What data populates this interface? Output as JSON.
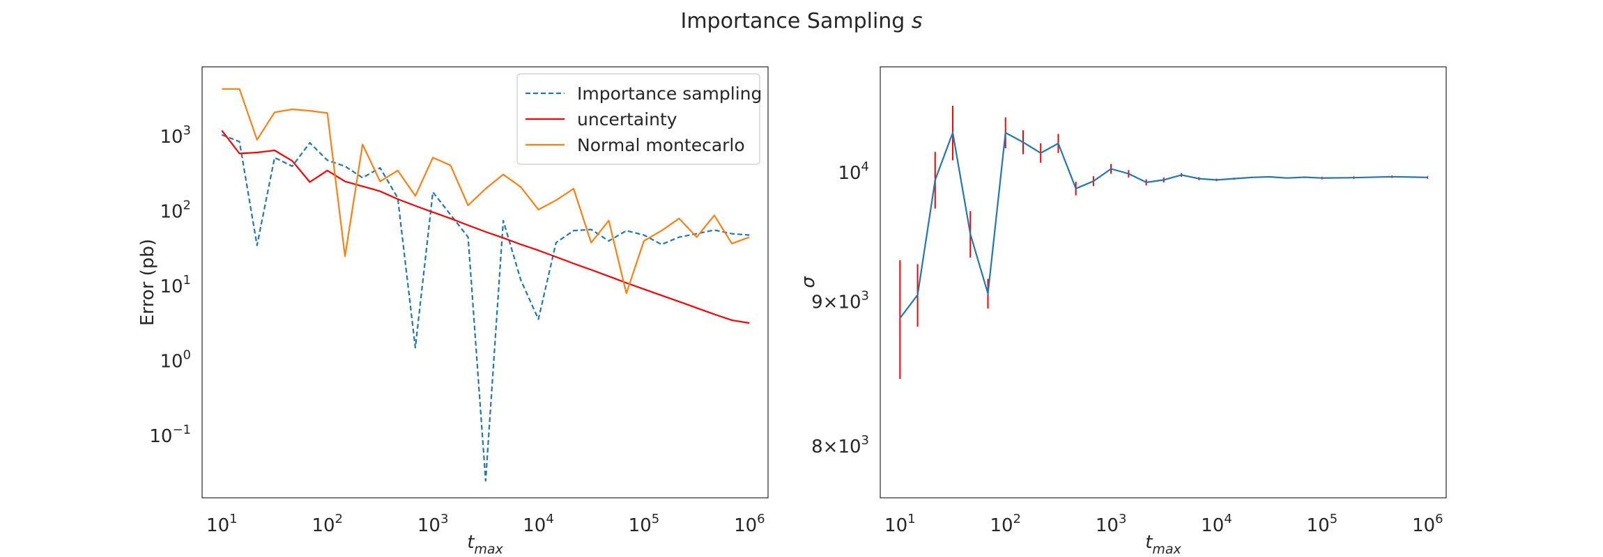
{
  "title": {
    "text": "Importance Sampling ",
    "symbol": "s"
  },
  "chart_data": [
    {
      "type": "line",
      "xscale": "log",
      "yscale": "log",
      "xlim": [
        6.5,
        1500000
      ],
      "ylim": [
        0.0148,
        8500
      ],
      "xlabel": {
        "main": "t",
        "sub": "max"
      },
      "ylabel": "Error (pb)",
      "xticks": [
        {
          "value": 10,
          "base": "10",
          "exp": "1"
        },
        {
          "value": 100,
          "base": "10",
          "exp": "2"
        },
        {
          "value": 1000,
          "base": "10",
          "exp": "3"
        },
        {
          "value": 10000,
          "base": "10",
          "exp": "4"
        },
        {
          "value": 100000,
          "base": "10",
          "exp": "5"
        },
        {
          "value": 1000000,
          "base": "10",
          "exp": "6"
        }
      ],
      "yticks": [
        {
          "value": 0.1,
          "base": "10",
          "exp": "−1"
        },
        {
          "value": 1,
          "base": "10",
          "exp": "0"
        },
        {
          "value": 10,
          "base": "10",
          "exp": "1"
        },
        {
          "value": 100,
          "base": "10",
          "exp": "2"
        },
        {
          "value": 1000,
          "base": "10",
          "exp": "3"
        }
      ],
      "grid": false,
      "legend_position": "top-right",
      "x": [
        10,
        14.68,
        21.54,
        31.62,
        46.42,
        68.13,
        100,
        146.8,
        215.4,
        316.2,
        464.2,
        681.3,
        1000,
        1468,
        2154,
        3162,
        4642,
        6813,
        10000,
        14680,
        21540,
        31620,
        46420,
        68130,
        100000,
        146800,
        215400,
        316200,
        464200,
        681300,
        1000000
      ],
      "series": [
        {
          "name": "Importance sampling",
          "color": "#1f77b4",
          "style": "dashed",
          "values": [
            1050,
            850,
            35,
            520,
            400,
            820,
            480,
            400,
            280,
            380,
            150,
            1.5,
            180,
            90,
            45,
            0.025,
            75,
            12,
            3.6,
            38,
            55,
            57,
            40,
            55,
            48,
            36,
            45,
            50,
            56,
            50,
            48
          ]
        },
        {
          "name": "uncertainty",
          "color": "#ff0000",
          "style": "solid",
          "values": [
            1200,
            590,
            610,
            650,
            470,
            245,
            350,
            250,
            215,
            185,
            145,
            118,
            97,
            80,
            65,
            53,
            44,
            36,
            30,
            24.5,
            20,
            16.5,
            13.5,
            11,
            9.1,
            7.5,
            6.2,
            5.1,
            4.2,
            3.5,
            3.2
          ]
        },
        {
          "name": "Normal montecarlo",
          "color": "#ff7f0e",
          "style": "solid",
          "values": [
            4300,
            4300,
            900,
            2100,
            2300,
            2200,
            2050,
            25,
            780,
            250,
            350,
            160,
            520,
            410,
            120,
            200,
            310,
            210,
            105,
            140,
            200,
            38,
            75,
            8,
            40,
            55,
            80,
            45,
            88,
            37,
            45
          ]
        }
      ]
    },
    {
      "type": "line",
      "xscale": "log",
      "yscale": "log",
      "xlim": [
        6.5,
        1500000
      ],
      "ylim": [
        7670,
        10900
      ],
      "xlabel": {
        "main": "t",
        "sub": "max"
      },
      "ylabel": "σ",
      "xticks": [
        {
          "value": 10,
          "base": "10",
          "exp": "1"
        },
        {
          "value": 100,
          "base": "10",
          "exp": "2"
        },
        {
          "value": 1000,
          "base": "10",
          "exp": "3"
        },
        {
          "value": 10000,
          "base": "10",
          "exp": "4"
        },
        {
          "value": 100000,
          "base": "10",
          "exp": "5"
        },
        {
          "value": 1000000,
          "base": "10",
          "exp": "6"
        }
      ],
      "yticks": [
        {
          "value": 8000,
          "mant": "8",
          "base": "10",
          "exp": "3"
        },
        {
          "value": 9000,
          "mant": "9",
          "base": "10",
          "exp": "3"
        },
        {
          "value": 10000,
          "base": "10",
          "exp": "4"
        }
      ],
      "grid": false,
      "legend_position": "none",
      "x": [
        10,
        14.68,
        21.54,
        31.62,
        46.42,
        68.13,
        100,
        146.8,
        215.4,
        316.2,
        464.2,
        681.3,
        1000,
        1468,
        2154,
        3162,
        4642,
        6813,
        10000,
        14680,
        21540,
        31620,
        46420,
        68130,
        100000,
        200000,
        460000,
        1000000
      ],
      "series": [
        {
          "name": "",
          "color": "#1f77b4",
          "errorbar_color": "#ff0000",
          "values": [
            8880,
            9050,
            9940,
            10330,
            9510,
            9060,
            10330,
            10250,
            10160,
            10240,
            9870,
            9930,
            10030,
            9990,
            9920,
            9940,
            9980,
            9950,
            9940,
            9950,
            9960,
            9965,
            9955,
            9962,
            9955,
            9958,
            9966,
            9960
          ],
          "errors": [
            430,
            230,
            230,
            230,
            180,
            110,
            130,
            100,
            80,
            80,
            55,
            40,
            40,
            30,
            25,
            20,
            15,
            12,
            10,
            8,
            6,
            5,
            4,
            3,
            0,
            0,
            0,
            0
          ]
        }
      ]
    }
  ]
}
